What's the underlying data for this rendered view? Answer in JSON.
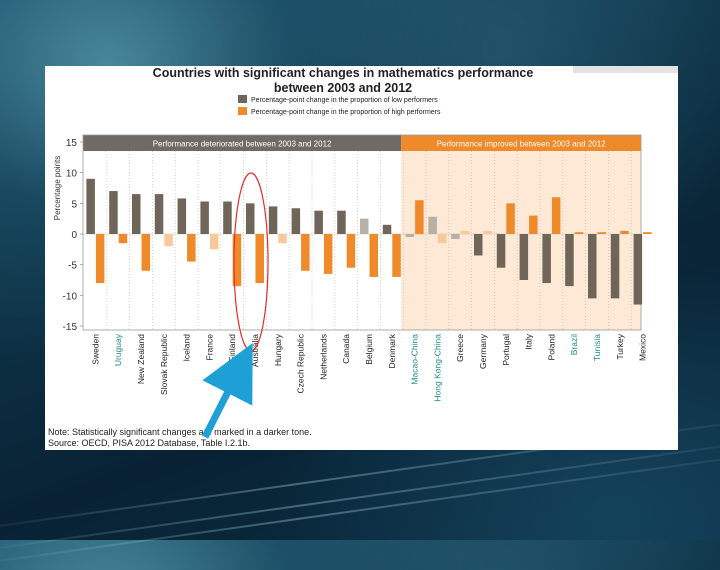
{
  "chart_data": {
    "type": "bar",
    "title": "Countries with significant changes in mathematics performance",
    "subtitle": "between 2003 and 2012",
    "ylabel": "Percentage points",
    "ylim": [
      -15,
      15
    ],
    "yticks": [
      15,
      10,
      5,
      0,
      -5,
      -10,
      -15
    ],
    "legend": [
      {
        "label": "Percentage-point change in the proportion of low performers",
        "color": "#6f6558"
      },
      {
        "label": "Percentage-point change in the proportion of high performers",
        "color": "#ef8a2a"
      }
    ],
    "groups": [
      {
        "label": "Performance deteriorated between 2003 and 2012",
        "start": 0,
        "end": 13,
        "color": "#706a64"
      },
      {
        "label": "Performance improved between 2003 and 2012",
        "start": 14,
        "end": 24,
        "color": "#ef8a2a"
      }
    ],
    "categories": [
      "Sweden",
      "Uruguay",
      "New Zealand",
      "Slovak Republic",
      "Iceland",
      "France",
      "Finland",
      "Australia",
      "Hungary",
      "Czech Republic",
      "Netherlands",
      "Canada",
      "Belgium",
      "Denmark",
      "Macao-China",
      "Hong Kong-China",
      "Greece",
      "Germany",
      "Portugal",
      "Italy",
      "Poland",
      "Brazil",
      "Tunisia",
      "Turkey",
      "Mexico"
    ],
    "teal_categories": [
      "Uruguay",
      "Macao-China",
      "Hong Kong-China",
      "Brazil",
      "Tunisia"
    ],
    "series": [
      {
        "name": "Percentage-point change in the proportion of low performers",
        "values": [
          9,
          7,
          6.5,
          6.5,
          5.8,
          5.3,
          5.3,
          5.0,
          4.5,
          4.2,
          3.8,
          3.8,
          2.5,
          1.5,
          -0.5,
          2.8,
          -0.8,
          -3.5,
          -5.5,
          -7.5,
          -8,
          -8.5,
          -10.5,
          -10.5,
          -11.5
        ],
        "significant": [
          true,
          true,
          true,
          true,
          true,
          true,
          true,
          true,
          true,
          true,
          true,
          true,
          false,
          true,
          false,
          false,
          false,
          true,
          true,
          true,
          true,
          true,
          true,
          true,
          true
        ]
      },
      {
        "name": "Percentage-point change in the proportion of high performers",
        "values": [
          -8,
          -1.5,
          -6,
          -2,
          -4.5,
          -2.5,
          -8.5,
          -8,
          -1.5,
          -6,
          -6.5,
          -5.5,
          -7,
          -7,
          5.5,
          -1.5,
          0.5,
          0.5,
          5,
          3,
          6,
          0.3,
          0.3,
          0.5,
          0.3
        ],
        "significant": [
          true,
          true,
          true,
          false,
          true,
          false,
          true,
          true,
          false,
          true,
          true,
          true,
          true,
          true,
          true,
          false,
          false,
          false,
          true,
          true,
          true,
          true,
          true,
          true,
          true
        ]
      }
    ]
  },
  "notes": {
    "note": "Note: Statistically significant changes are marked in a darker tone.",
    "source": "Source: OECD, PISA 2012 Database, Table I.2.1b."
  }
}
